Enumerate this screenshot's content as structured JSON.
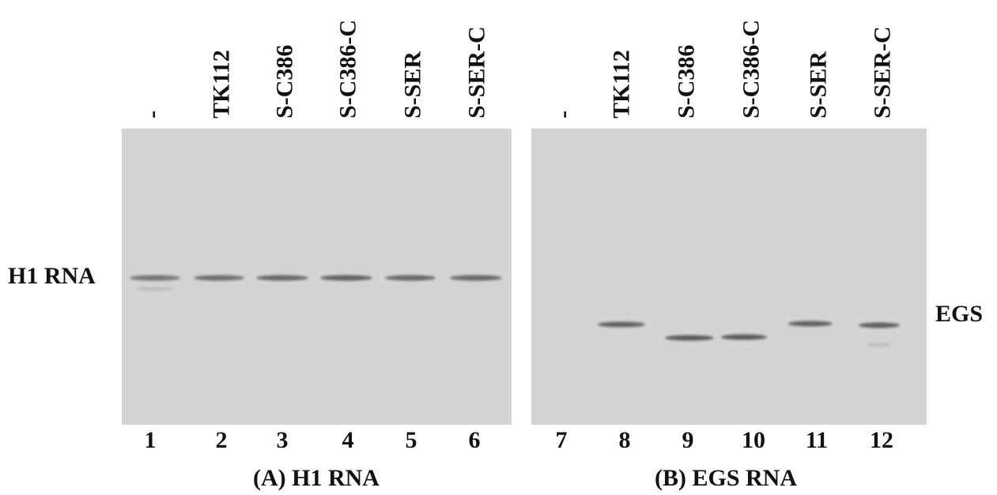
{
  "panels": [
    {
      "side_label": "H1 RNA",
      "caption": "(A) H1 RNA",
      "lanes": [
        {
          "label": "-",
          "number": 1
        },
        {
          "label": "TK112",
          "number": 2
        },
        {
          "label": "S-C386",
          "number": 3
        },
        {
          "label": "S-C386-C",
          "number": 4
        },
        {
          "label": "S-SER",
          "number": 5
        },
        {
          "label": "S-SER-C",
          "number": 6
        }
      ]
    },
    {
      "side_label": "EGS",
      "caption": "(B) EGS RNA",
      "lanes": [
        {
          "label": "-",
          "number": 7
        },
        {
          "label": "TK112",
          "number": 8
        },
        {
          "label": "S-C386",
          "number": 9
        },
        {
          "label": "S-C386-C",
          "number": 10
        },
        {
          "label": "S-SER",
          "number": 11
        },
        {
          "label": "S-SER-C",
          "number": 12
        }
      ]
    }
  ]
}
